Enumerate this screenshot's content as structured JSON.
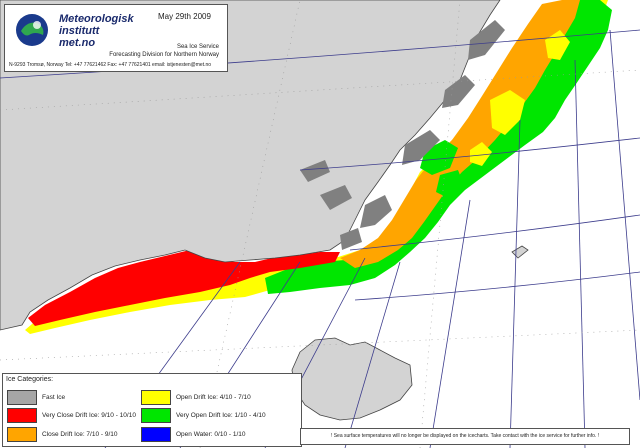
{
  "header": {
    "institute_line1": "Meteorologisk",
    "institute_line2": "institutt",
    "website": "met.no",
    "date": "May 29th 2009",
    "service": "Sea Ice Service",
    "division": "Forecasting Division for Northern Norway",
    "contact": "N-9293 Tromsø, Norway   Tel: +47 77621462   Fax: +47 77621401   email: istjenesten@met.no"
  },
  "legend": {
    "title": "Ice Categories:",
    "items": [
      {
        "label": "Fast Ice",
        "color": "#a6a6a6"
      },
      {
        "label": "Very Close Drift Ice:  9/10 - 10/10",
        "color": "#ff0000"
      },
      {
        "label": "Close Drift Ice:  7/10 - 9/10",
        "color": "#ffa500"
      },
      {
        "label": "Open Drift Ice:  4/10 - 7/10",
        "color": "#ffff00"
      },
      {
        "label": "Very Open Drift Ice:  1/10 - 4/10",
        "color": "#00e600"
      },
      {
        "label": "Open Water:  0/10 - 1/10",
        "color": "#0000ff"
      }
    ]
  },
  "note": "! Sea surface temperatures will no longer be displayed on the icecharts. Take contact with the ice service for further info. !",
  "map_colors": {
    "land": "#d3d3d3",
    "grid": "#3c3c8c",
    "coast": "#444444",
    "water": "#ffffff"
  }
}
